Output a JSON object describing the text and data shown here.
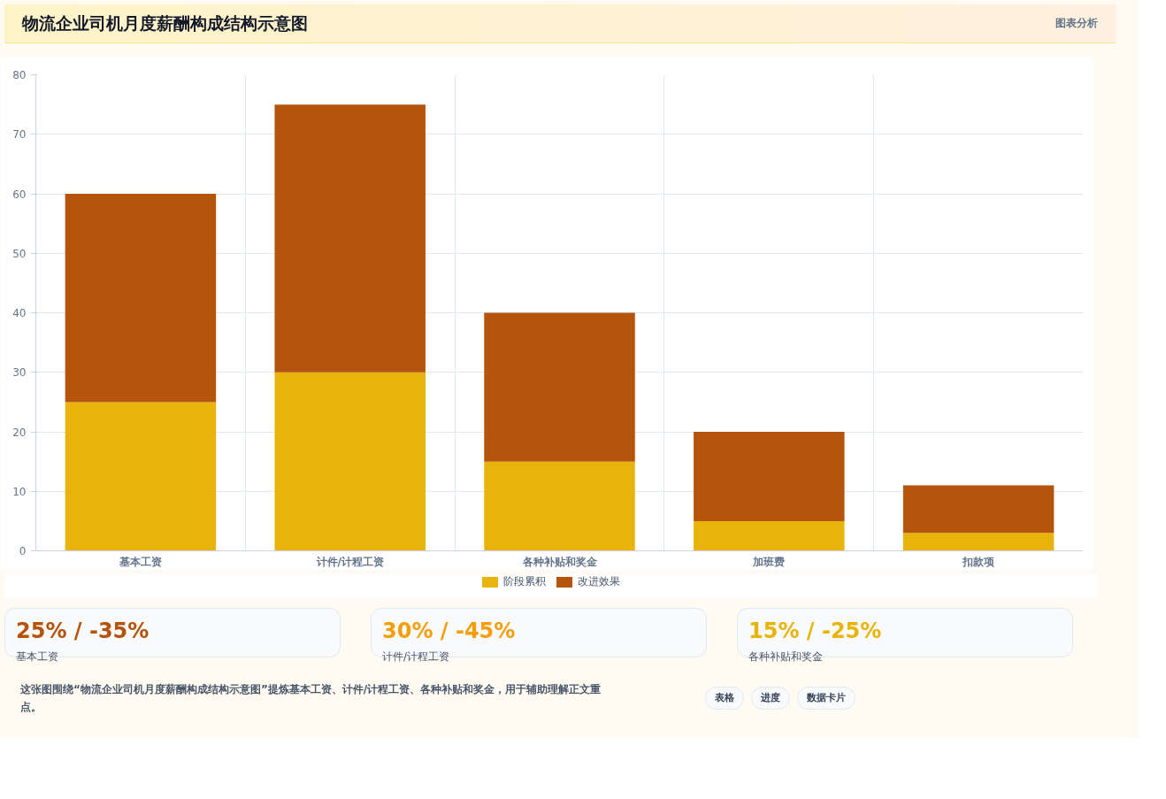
{
  "chart_data": {
    "type": "bar",
    "title": "物流企业司机月度薪酬构成结构示意图",
    "stacked": true,
    "categories": [
      "基本工资",
      "计件/计程工资",
      "各种补贴和奖金",
      "加班费",
      "扣款项"
    ],
    "series": [
      {
        "name": "阶段累积",
        "color": "#e8b30b",
        "values": [
          25,
          30,
          15,
          5,
          3
        ]
      },
      {
        "name": "改进效果",
        "color": "#b5540b",
        "values": [
          35,
          45,
          25,
          15,
          8
        ]
      }
    ],
    "ylim": [
      0,
      80
    ],
    "yticks": [
      0,
      10,
      20,
      30,
      40,
      50,
      60,
      70,
      80
    ],
    "grid": true,
    "legend": "bottom",
    "annotations": [
      "图表分析",
      "25% / -35%",
      "基本工资",
      "30% / -45%",
      "计件/计程工资",
      "15% / -25%",
      "各种补贴和奖金",
      "这张图围绕“物流企业司机月度薪酬构成结构示意图”提炼基本工资、计件/计程工资、各种补贴和奖金，用于辅助理解正文重点。",
      "表格",
      "进度",
      "数据卡片"
    ]
  }
}
